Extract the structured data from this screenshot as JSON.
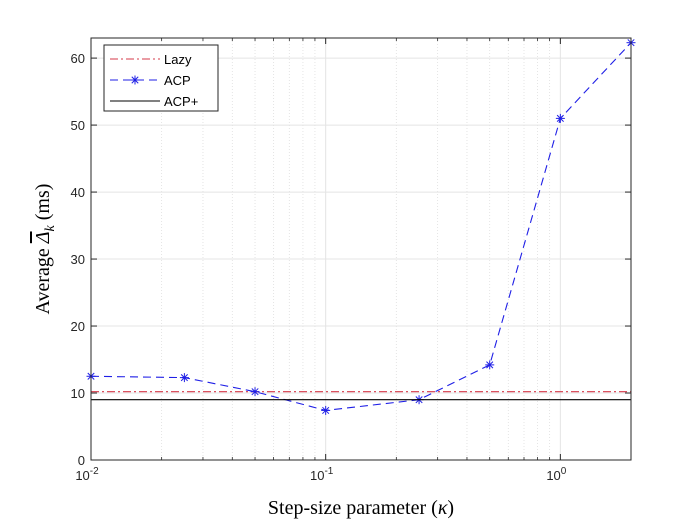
{
  "chart_data": {
    "type": "line",
    "title": "",
    "xlabel_pre": "Step-size parameter (",
    "xlabel_sym": "κ",
    "xlabel_post": ")",
    "ylabel_pre": "Average ",
    "ylabel_sym": "Δ",
    "ylabel_sub": "k",
    "ylabel_post": " (ms)",
    "xscale": "log",
    "xlim": [
      0.01,
      2
    ],
    "ylim": [
      0,
      63
    ],
    "grid": true,
    "legend_position": "top-left",
    "x_ticks": [
      {
        "value": 0.01,
        "base": "10",
        "exp": "-2"
      },
      {
        "value": 0.1,
        "base": "10",
        "exp": "-1"
      },
      {
        "value": 1,
        "base": "10",
        "exp": "0"
      }
    ],
    "y_ticks": [
      0,
      10,
      20,
      30,
      40,
      50,
      60
    ],
    "series": [
      {
        "name": "Lazy",
        "color": "#d63a4a",
        "style": "dash-dot",
        "marker": "none",
        "x": [
          0.01,
          2
        ],
        "y": [
          10.2,
          10.2
        ]
      },
      {
        "name": "ACP",
        "color": "#1f1fe6",
        "style": "dashed",
        "marker": "asterisk",
        "x": [
          0.01,
          0.025,
          0.05,
          0.1,
          0.25,
          0.5,
          1,
          2
        ],
        "y": [
          12.5,
          12.3,
          10.2,
          7.4,
          9.0,
          14.2,
          51.0,
          62.3
        ]
      },
      {
        "name": "ACP+",
        "color": "#000000",
        "style": "solid",
        "marker": "none",
        "x": [
          0.01,
          2
        ],
        "y": [
          9.0,
          9.0
        ]
      }
    ]
  }
}
